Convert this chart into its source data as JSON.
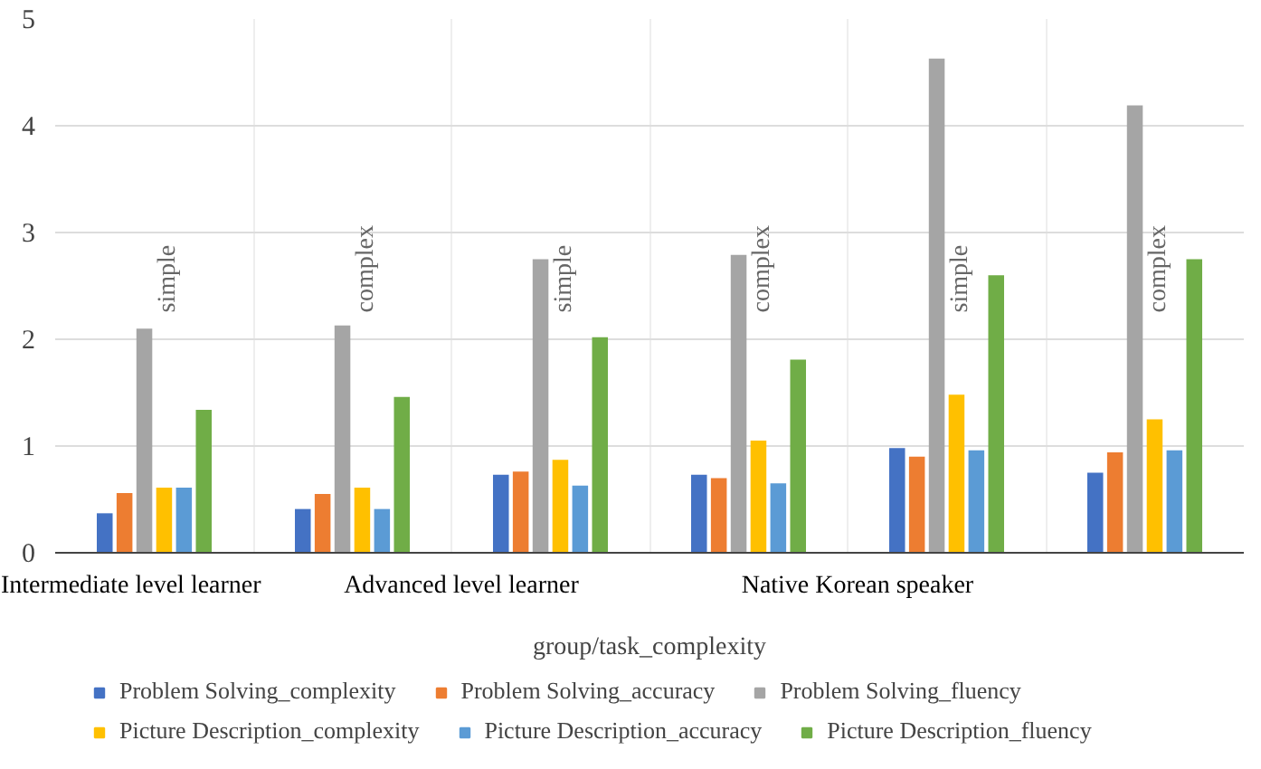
{
  "chart_data": {
    "type": "bar",
    "xlabel": "group/task_complexity",
    "categories": [
      "simple",
      "complex",
      "simple",
      "complex",
      "simple",
      "complex"
    ],
    "annotations": [
      "Intermediate level learner",
      "Advanced level learner",
      "Native Korean speaker"
    ],
    "ylim": [
      0,
      5
    ],
    "yticks": [
      0,
      1,
      2,
      3,
      4,
      5
    ],
    "grid": true,
    "legend": "bottom",
    "series": [
      {
        "name": "Problem Solving_complexity",
        "color": "#4472c4",
        "values": [
          0.37,
          0.41,
          0.73,
          0.73,
          0.98,
          0.75
        ]
      },
      {
        "name": "Problem Solving_accuracy",
        "color": "#ed7d31",
        "values": [
          0.56,
          0.55,
          0.76,
          0.7,
          0.9,
          0.94
        ]
      },
      {
        "name": "Problem Solving_fluency",
        "color": "#a5a5a5",
        "values": [
          2.1,
          2.13,
          2.75,
          2.79,
          4.63,
          4.19
        ]
      },
      {
        "name": "Picture Description_complexity",
        "color": "#ffc000",
        "values": [
          0.61,
          0.61,
          0.87,
          1.05,
          1.48,
          1.25
        ]
      },
      {
        "name": "Picture Description_accuracy",
        "color": "#5b9bd5",
        "values": [
          0.61,
          0.41,
          0.63,
          0.65,
          0.96,
          0.96
        ]
      },
      {
        "name": "Picture Description_fluency",
        "color": "#70ad47",
        "values": [
          1.34,
          1.46,
          2.02,
          1.81,
          2.6,
          2.75
        ]
      }
    ]
  }
}
